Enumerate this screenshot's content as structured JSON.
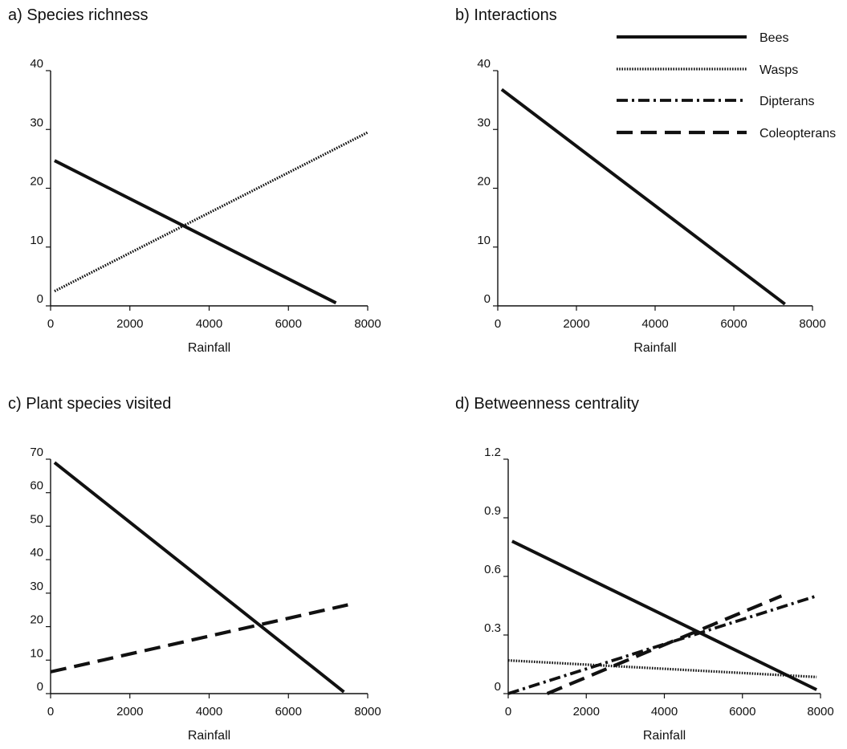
{
  "chart_data": [
    {
      "id": "a",
      "type": "line",
      "title": "a)  Species richness",
      "xlabel": "Rainfall",
      "ylabel": "",
      "xlim": [
        0,
        8000
      ],
      "ylim": [
        0,
        40
      ],
      "xticks": [
        "0",
        "2000",
        "4000",
        "6000",
        "8000"
      ],
      "yticks": [
        "0",
        "10",
        "20",
        "30",
        "40"
      ],
      "grid": false,
      "series": [
        {
          "key": "bees",
          "x": [
            100,
            7200
          ],
          "y": [
            24.7,
            0.5
          ],
          "color": "#111111",
          "style": "solid"
        },
        {
          "key": "wasps",
          "x": [
            100,
            8000
          ],
          "y": [
            2.5,
            29.5
          ],
          "color": "#111111",
          "style": "dotted"
        }
      ]
    },
    {
      "id": "b",
      "type": "line",
      "title": "b)  Interactions",
      "xlabel": "Rainfall",
      "ylabel": "",
      "xlim": [
        0,
        8000
      ],
      "ylim": [
        0,
        40
      ],
      "xticks": [
        "0",
        "2000",
        "4000",
        "6000",
        "8000"
      ],
      "yticks": [
        "0",
        "10",
        "20",
        "30",
        "40"
      ],
      "grid": false,
      "series": [
        {
          "key": "bees",
          "x": [
            100,
            7300
          ],
          "y": [
            36.8,
            0.3
          ],
          "color": "#111111",
          "style": "solid"
        }
      ]
    },
    {
      "id": "c",
      "type": "line",
      "title": "c)  Plant species visited",
      "xlabel": "Rainfall",
      "ylabel": "",
      "xlim": [
        0,
        8000
      ],
      "ylim": [
        0,
        70
      ],
      "xticks": [
        "0",
        "2000",
        "4000",
        "6000",
        "8000"
      ],
      "yticks": [
        "0",
        "10",
        "20",
        "30",
        "40",
        "50",
        "60",
        "70"
      ],
      "grid": false,
      "series": [
        {
          "key": "bees",
          "x": [
            100,
            7400
          ],
          "y": [
            69,
            0.5
          ],
          "color": "#111111",
          "style": "solid"
        },
        {
          "key": "coleopterans",
          "x": [
            0,
            7500
          ],
          "y": [
            6.5,
            26.5
          ],
          "color": "#111111",
          "style": "longdash"
        }
      ]
    },
    {
      "id": "d",
      "type": "line",
      "title": "d)  Betweenness centrality",
      "xlabel": "Rainfall",
      "ylabel": "",
      "xlim": [
        0,
        8000
      ],
      "ylim": [
        0,
        1.2
      ],
      "xticks": [
        "0",
        "2000",
        "4000",
        "6000",
        "8000"
      ],
      "yticks": [
        "0",
        "0.3",
        "0.6",
        "0.9",
        "1.2"
      ],
      "grid": false,
      "series": [
        {
          "key": "bees",
          "x": [
            100,
            7900
          ],
          "y": [
            0.78,
            0.02
          ],
          "color": "#111111",
          "style": "solid"
        },
        {
          "key": "wasps",
          "x": [
            0,
            7900
          ],
          "y": [
            0.17,
            0.085
          ],
          "color": "#111111",
          "style": "dotted"
        },
        {
          "key": "dipterans",
          "x": [
            0,
            7900
          ],
          "y": [
            0.0,
            0.5
          ],
          "color": "#111111",
          "style": "dashdot"
        },
        {
          "key": "coleopterans",
          "x": [
            1000,
            7000
          ],
          "y": [
            0.0,
            0.5
          ],
          "color": "#111111",
          "style": "longdash"
        }
      ]
    }
  ],
  "legend": {
    "placement": "top-right",
    "entries": [
      {
        "key": "bees",
        "label": "Bees",
        "style": "solid"
      },
      {
        "key": "wasps",
        "label": "Wasps",
        "style": "dotted"
      },
      {
        "key": "dipterans",
        "label": "Dipterans",
        "style": "dashdot"
      },
      {
        "key": "coleopterans",
        "label": "Coleopterans",
        "style": "longdash"
      }
    ]
  }
}
